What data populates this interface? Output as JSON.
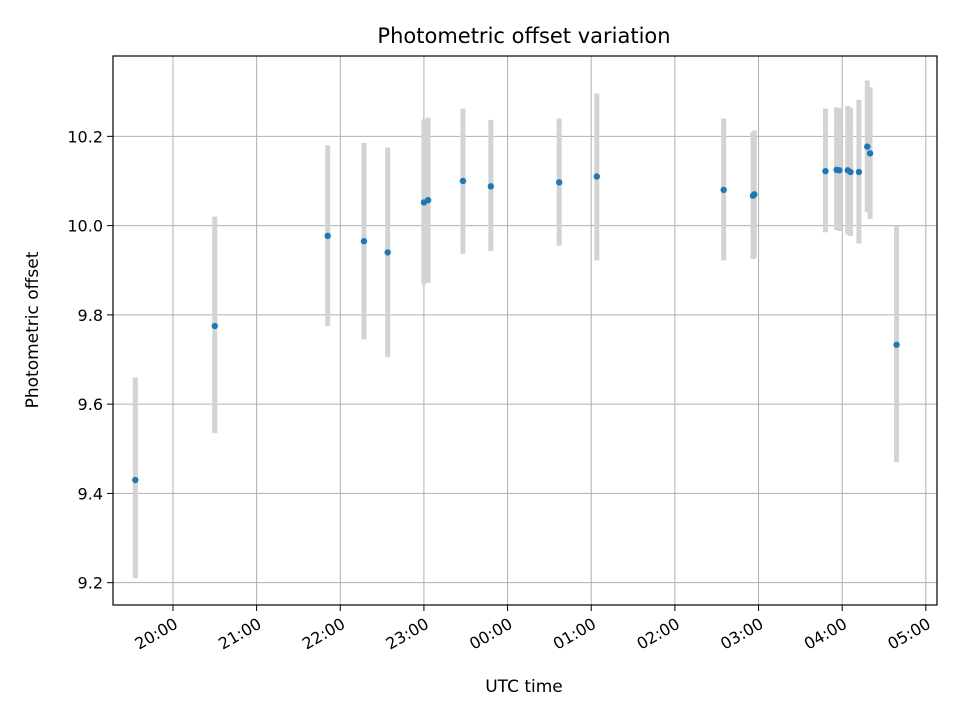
{
  "chart_data": {
    "type": "scatter",
    "title": "Photometric offset variation",
    "xlabel": "UTC time",
    "ylabel": "Photometric offset",
    "grid": true,
    "legend": null,
    "colors": {
      "point": "#1f77b4",
      "error_bar": "#d3d3d3"
    },
    "xlim": [
      "19:17",
      "05:08"
    ],
    "ylim": [
      9.15,
      10.38
    ],
    "x_ticks": [
      "20:00",
      "21:00",
      "22:00",
      "23:00",
      "00:00",
      "01:00",
      "02:00",
      "03:00",
      "04:00",
      "05:00"
    ],
    "y_ticks": [
      "9.2",
      "9.4",
      "9.6",
      "9.8",
      "10.0",
      "10.2"
    ],
    "series": [
      {
        "points": [
          {
            "x": "19:33",
            "y": 9.43,
            "err_low": 9.21,
            "err_high": 9.66
          },
          {
            "x": "20:30",
            "y": 9.775,
            "err_low": 9.535,
            "err_high": 10.02
          },
          {
            "x": "21:51",
            "y": 9.977,
            "err_low": 9.775,
            "err_high": 10.18
          },
          {
            "x": "22:17",
            "y": 9.965,
            "err_low": 9.745,
            "err_high": 10.185
          },
          {
            "x": "22:34",
            "y": 9.94,
            "err_low": 9.705,
            "err_high": 10.175
          },
          {
            "x": "23:00",
            "y": 10.052,
            "err_low": 9.868,
            "err_high": 10.238
          },
          {
            "x": "23:03",
            "y": 10.057,
            "err_low": 9.872,
            "err_high": 10.242
          },
          {
            "x": "23:28",
            "y": 10.1,
            "err_low": 9.937,
            "err_high": 10.262
          },
          {
            "x": "23:48",
            "y": 10.088,
            "err_low": 9.943,
            "err_high": 10.237
          },
          {
            "x": "00:37",
            "y": 10.097,
            "err_low": 9.955,
            "err_high": 10.24
          },
          {
            "x": "01:04",
            "y": 10.11,
            "err_low": 9.922,
            "err_high": 10.296
          },
          {
            "x": "02:35",
            "y": 10.08,
            "err_low": 9.922,
            "err_high": 10.24
          },
          {
            "x": "02:56",
            "y": 10.067,
            "err_low": 9.925,
            "err_high": 10.21
          },
          {
            "x": "02:57",
            "y": 10.07,
            "err_low": 9.928,
            "err_high": 10.213
          },
          {
            "x": "03:48",
            "y": 10.122,
            "err_low": 9.985,
            "err_high": 10.262
          },
          {
            "x": "03:56",
            "y": 10.125,
            "err_low": 9.99,
            "err_high": 10.265
          },
          {
            "x": "03:58",
            "y": 10.124,
            "err_low": 9.988,
            "err_high": 10.263
          },
          {
            "x": "04:04",
            "y": 10.124,
            "err_low": 9.98,
            "err_high": 10.268
          },
          {
            "x": "04:06",
            "y": 10.12,
            "err_low": 9.977,
            "err_high": 10.264
          },
          {
            "x": "04:12",
            "y": 10.12,
            "err_low": 9.96,
            "err_high": 10.282
          },
          {
            "x": "04:18",
            "y": 10.177,
            "err_low": 10.03,
            "err_high": 10.325
          },
          {
            "x": "04:20",
            "y": 10.162,
            "err_low": 10.015,
            "err_high": 10.31
          },
          {
            "x": "04:39",
            "y": 9.733,
            "err_low": 9.47,
            "err_high": 10.0
          }
        ]
      }
    ]
  }
}
